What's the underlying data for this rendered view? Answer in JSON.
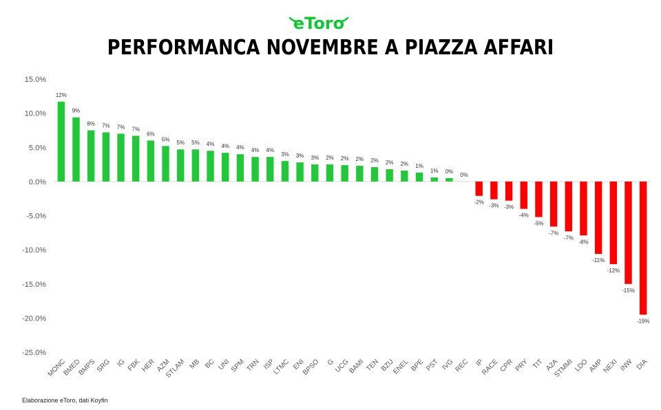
{
  "brand": "eToro",
  "title": "PERFORMANCA NOVEMBRE A PIAZZA AFFARI",
  "source": "Elaborazione eToro, dati Koyfin",
  "colors": {
    "positive": "#22c83a",
    "negative": "#ff0000",
    "brand": "#13c636"
  },
  "chart_data": {
    "type": "bar",
    "ylim": [
      -25,
      15
    ],
    "yticks": [
      15,
      10,
      5,
      0,
      -5,
      -10,
      -15,
      -20,
      -25
    ],
    "ytick_labels": [
      "15.0%",
      "10.0%",
      "5.0%",
      "0.0%",
      "-5.0%",
      "-10.0%",
      "-15.0%",
      "-20.0%",
      "-25.0%"
    ],
    "categories": [
      "MONC",
      "BMED",
      "BMPS",
      "SRG",
      "IG",
      "FBK",
      "HER",
      "AZM",
      "STLAM",
      "MB",
      "BC",
      "UNI",
      "SPM",
      "TRN",
      "ISP",
      "LTMC",
      "ENI",
      "BPSO",
      "G",
      "UCG",
      "BAMI",
      "TEN",
      "BZU",
      "ENEL",
      "BPE",
      "PST",
      "IVG",
      "REC",
      "IP",
      "RACE",
      "CPR",
      "PRY",
      "TIT",
      "A2A",
      "STMMI",
      "LDO",
      "AMP",
      "NEXI",
      "INW",
      "DIA"
    ],
    "values": [
      11.7,
      9.4,
      7.5,
      7.2,
      7.0,
      6.7,
      6.0,
      5.2,
      4.7,
      4.7,
      4.5,
      4.2,
      4.0,
      3.6,
      3.6,
      3.0,
      2.8,
      2.5,
      2.5,
      2.4,
      2.3,
      2.1,
      1.8,
      1.6,
      1.3,
      0.6,
      0.5,
      0.0,
      -2.1,
      -2.6,
      -2.8,
      -4.0,
      -5.2,
      -6.6,
      -7.3,
      -7.9,
      -10.6,
      -12.1,
      -15.0,
      -19.5
    ],
    "data_labels": [
      "12%",
      "9%",
      "8%",
      "7%",
      "7%",
      "7%",
      "6%",
      "5%",
      "5%",
      "5%",
      "4%",
      "4%",
      "4%",
      "4%",
      "4%",
      "3%",
      "3%",
      "3%",
      "2%",
      "2%",
      "2%",
      "2%",
      "2%",
      "2%",
      "1%",
      "1%",
      "0%",
      "0%",
      "-2%",
      "-3%",
      "-3%",
      "-4%",
      "-5%",
      "-7%",
      "-7%",
      "-8%",
      "-11%",
      "-12%",
      "-15%",
      "-19%"
    ],
    "grid": false,
    "legend": "none"
  }
}
